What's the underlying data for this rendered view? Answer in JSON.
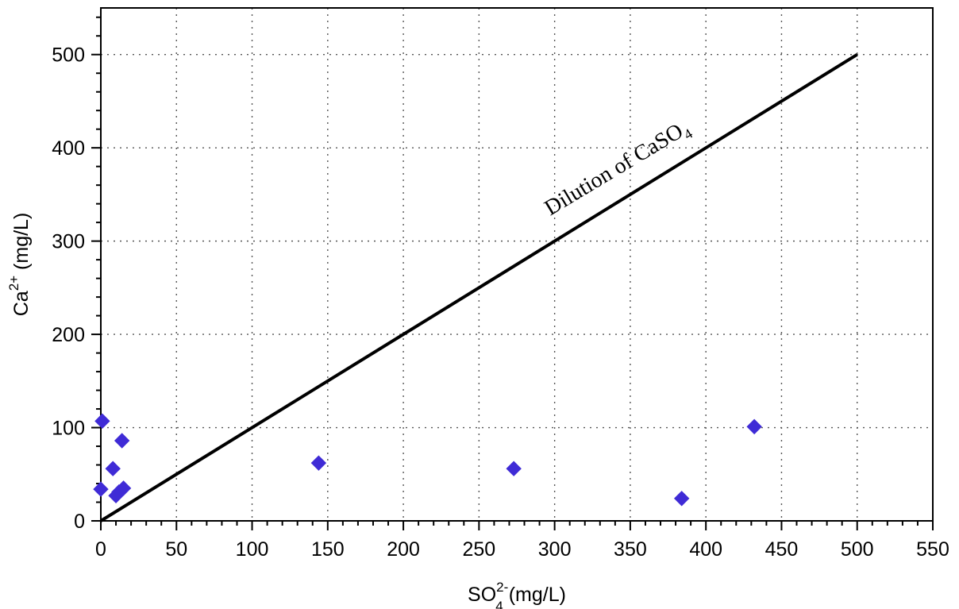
{
  "chart_data": {
    "type": "scatter",
    "x_axis": {
      "label_main": "SO",
      "label_sub": "4",
      "label_sup": "2-",
      "label_unit": " (mg/L)",
      "range": [
        0,
        550
      ],
      "ticks": [
        0,
        50,
        100,
        150,
        200,
        250,
        300,
        350,
        400,
        450,
        500,
        550
      ],
      "tick_labels": [
        "0",
        "50",
        "100",
        "150",
        "200",
        "250",
        "300",
        "350",
        "400",
        "450",
        "500",
        "550"
      ]
    },
    "y_axis": {
      "label_main": "Ca",
      "label_sup": "2+",
      "label_unit": " (mg/L)",
      "range": [
        0,
        550
      ],
      "ticks": [
        0,
        100,
        200,
        300,
        400,
        500
      ],
      "tick_labels": [
        "0",
        "100",
        "200",
        "300",
        "400",
        "500"
      ]
    },
    "grid": true,
    "series": [
      {
        "marker": "diamond",
        "color": "#3f2bd6",
        "points": [
          {
            "x": 1,
            "y": 107
          },
          {
            "x": 0,
            "y": 34
          },
          {
            "x": 14,
            "y": 86
          },
          {
            "x": 8,
            "y": 56
          },
          {
            "x": 10,
            "y": 27
          },
          {
            "x": 12,
            "y": 31
          },
          {
            "x": 15,
            "y": 35
          },
          {
            "x": 144,
            "y": 62
          },
          {
            "x": 273,
            "y": 56
          },
          {
            "x": 384,
            "y": 24
          },
          {
            "x": 432,
            "y": 101
          }
        ]
      }
    ],
    "lines": [
      {
        "x": [
          0,
          500
        ],
        "y": [
          0,
          500
        ],
        "color": "#000000",
        "label_main": "Dilution of CaSO",
        "label_sub": "4"
      }
    ]
  }
}
